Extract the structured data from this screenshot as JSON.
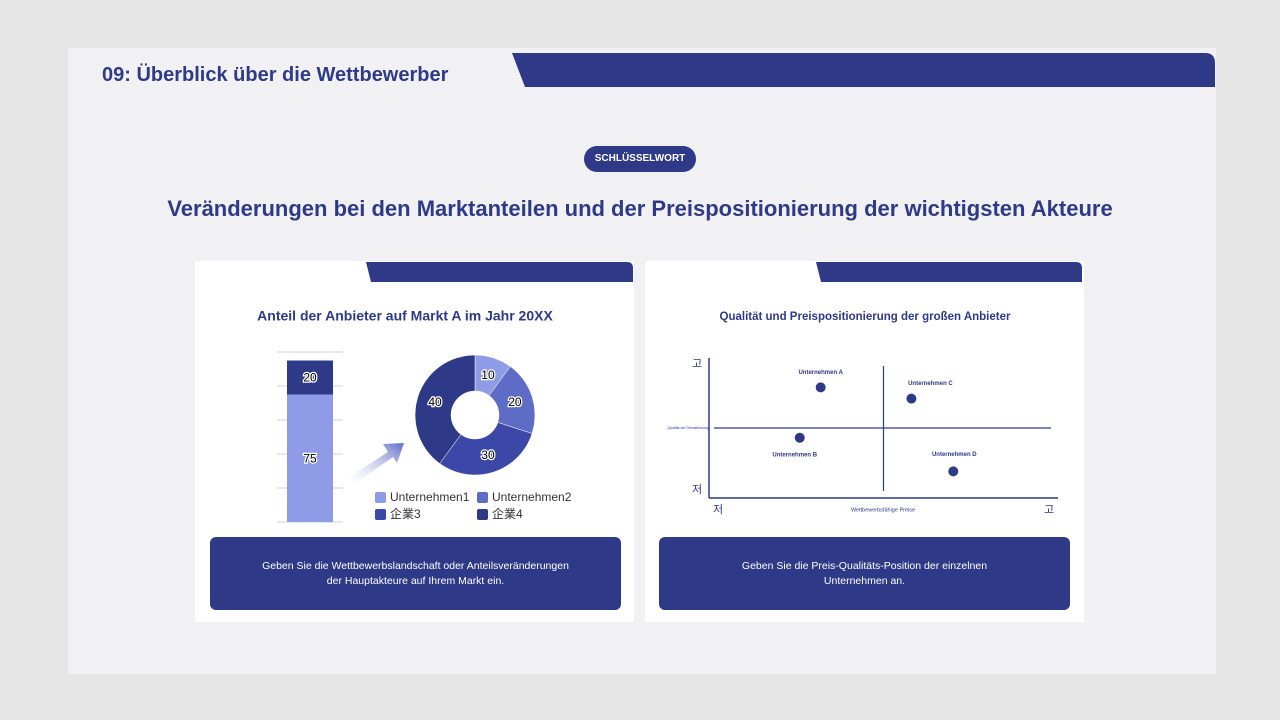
{
  "header": {
    "title": "09: Überblick über die Wettbewerber"
  },
  "keyword": "SCHLÜSSELWORT",
  "headline": "Veränderungen bei den Marktanteilen und der Preispositionierung der wichtigsten Akteure",
  "panels": [
    {
      "title": "Anteil der Anbieter auf Markt A im Jahr 20XX",
      "caption": "Geben Sie die Wettbewerbslandschaft oder Anteilsveränderungen der Hauptakteure auf Ihrem Markt ein."
    },
    {
      "title": "Qualität und Preispositionierung der großen Anbieter",
      "caption": "Geben Sie die Preis-Qualitäts-Position der einzelnen Unternehmen an."
    }
  ],
  "chart_data": [
    {
      "type": "stacked-bar",
      "categories": [
        null
      ],
      "series": [
        {
          "color": "#8e9be6",
          "values": [
            75
          ]
        },
        {
          "color": "#2e3a87",
          "values": [
            20
          ]
        }
      ],
      "ylim": [
        0,
        100
      ],
      "yticks": [
        0,
        20,
        40,
        60,
        80,
        100
      ],
      "grid": true
    },
    {
      "type": "pie",
      "categories": [
        "Unternehmen1",
        "Unternehmen2",
        "企業3",
        "企業4"
      ],
      "values": [
        10,
        20,
        30,
        40
      ],
      "colors": [
        "#8e9be6",
        "#5f6cc6",
        "#3b48a8",
        "#2e3a87"
      ]
    },
    {
      "type": "scatter",
      "x_label": "Wettbewerbsfähige Preise",
      "y_label": "Qualität der Dienstleistung",
      "labels": [
        "Unternehmen A",
        "Unternehmen B",
        "Unternehmen C",
        "Unternehmen D"
      ],
      "x": [
        3.2,
        2.6,
        5.8,
        7.0
      ],
      "values": [
        7.9,
        4.3,
        7.1,
        1.9
      ],
      "color": "#2e3a87",
      "xlim": [
        0,
        10
      ],
      "ylim": [
        0,
        10
      ],
      "xticks": [
        {
          "value": 0,
          "label": "저"
        },
        {
          "value": 10,
          "label": "고"
        }
      ],
      "yticks": [
        {
          "value": 0,
          "label": "저"
        },
        {
          "value": 10,
          "label": "고"
        }
      ],
      "xcross": 5,
      "ycross": 5
    }
  ]
}
